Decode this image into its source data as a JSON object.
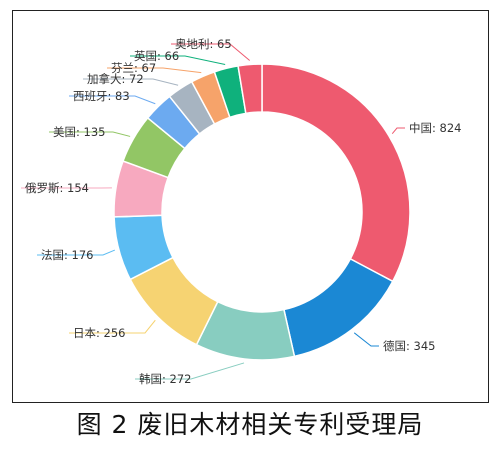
{
  "chart_data": {
    "type": "pie",
    "variant": "donut",
    "caption": "图 2  废旧木材相关专利受理局",
    "categories": [
      "中国",
      "德国",
      "韩国",
      "日本",
      "法国",
      "俄罗斯",
      "美国",
      "西班牙",
      "加拿大",
      "芬兰",
      "英国",
      "奥地利"
    ],
    "values": [
      824,
      345,
      272,
      256,
      176,
      154,
      135,
      83,
      72,
      67,
      66,
      65
    ],
    "labels": [
      "中国: 824",
      "德国: 345",
      "韩国: 272",
      "日本: 256",
      "法国: 176",
      "俄罗斯: 154",
      "美国: 135",
      "西班牙: 83",
      "加拿大: 72",
      "芬兰: 67",
      "英国: 66",
      "奥地利: 65"
    ],
    "colors": [
      "#ee5a6f",
      "#1b88d4",
      "#88cdc0",
      "#f6d372",
      "#5bbcf2",
      "#f7a9bf",
      "#92c665",
      "#6caaf0",
      "#a7b4c1",
      "#f6a36a",
      "#0fb17c",
      "#ee5a6f"
    ],
    "legend": "none"
  }
}
